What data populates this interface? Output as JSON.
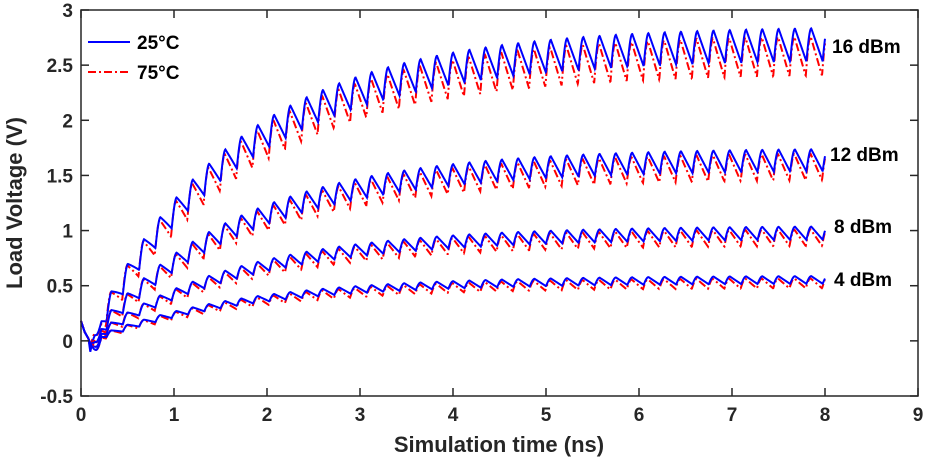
{
  "chart_data": {
    "type": "line",
    "title": "",
    "xlabel": "Simulation time (ns)",
    "ylabel": "Load Voltage (V)",
    "xlim": [
      0,
      9
    ],
    "ylim": [
      -0.5,
      3
    ],
    "xticks": [
      0,
      1,
      2,
      3,
      4,
      5,
      6,
      7,
      8,
      9
    ],
    "yticks": [
      -0.5,
      0,
      0.5,
      1,
      1.5,
      2,
      2.5,
      3
    ],
    "ytick_labels": [
      "-0.5",
      "0",
      "0.5",
      "1",
      "1.5",
      "2",
      "2.5",
      "3"
    ],
    "xtick_labels": [
      "0",
      "1",
      "2",
      "3",
      "4",
      "5",
      "6",
      "7",
      "8",
      "9"
    ],
    "grid": false,
    "legend_position": "top-left",
    "legend": [
      {
        "name": "25°C",
        "color": "#0000ff",
        "style": "solid"
      },
      {
        "name": "75°C",
        "color": "#ff0000",
        "style": "dash-dot"
      }
    ],
    "annotations": [
      "16 dBm",
      "12 dBm",
      "8 dBm",
      "4 dBm"
    ],
    "sim": {
      "t_start": 0.1,
      "t_end": 8.0,
      "period_ns": 0.175,
      "tau_ns": 1.6
    },
    "series_groups": [
      {
        "label": "16 dBm",
        "final_mean_25C": 2.72,
        "final_mean_75C": 2.62,
        "ripple_25C": 0.3,
        "ripple_75C": 0.36
      },
      {
        "label": "12 dBm",
        "final_mean_25C": 1.66,
        "final_mean_75C": 1.6,
        "ripple_25C": 0.2,
        "ripple_75C": 0.24
      },
      {
        "label": "8 dBm",
        "final_mean_25C": 0.99,
        "final_mean_75C": 0.95,
        "ripple_25C": 0.12,
        "ripple_75C": 0.15
      },
      {
        "label": "4 dBm",
        "final_mean_25C": 0.56,
        "final_mean_75C": 0.53,
        "ripple_25C": 0.07,
        "ripple_75C": 0.09
      }
    ]
  }
}
